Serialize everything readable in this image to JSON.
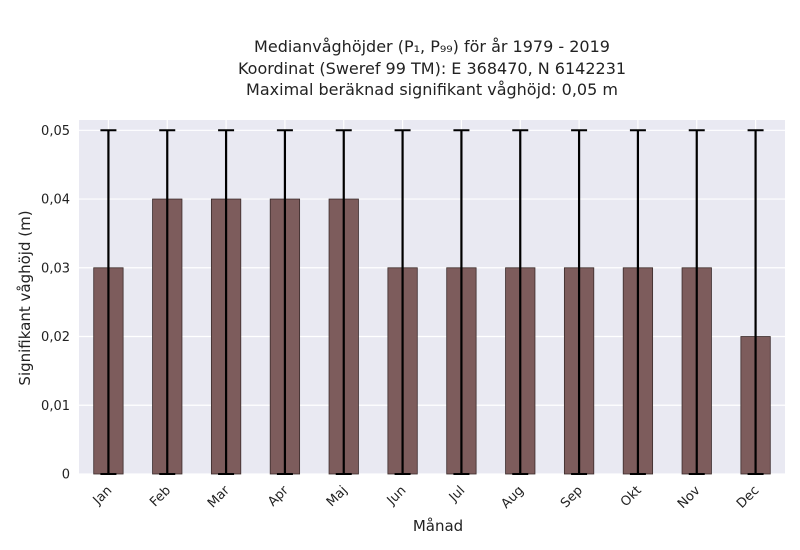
{
  "chart_data": {
    "type": "bar",
    "title_lines": [
      "Medianvåghöjder (P₁, P₉₉) för år 1979 - 2019",
      "Koordinat (Sweref 99 TM): E 368470, N 6142231",
      "Maximal beräknad signifikant våghöjd: 0,05 m"
    ],
    "xlabel": "Månad",
    "ylabel": "Signifikant våghöjd (m)",
    "categories": [
      "Jan",
      "Feb",
      "Mar",
      "Apr",
      "Maj",
      "Jun",
      "Jul",
      "Aug",
      "Sep",
      "Okt",
      "Nov",
      "Dec"
    ],
    "values": [
      0.03,
      0.04,
      0.04,
      0.04,
      0.04,
      0.03,
      0.03,
      0.03,
      0.03,
      0.03,
      0.03,
      0.02
    ],
    "error_low": [
      0,
      0,
      0,
      0,
      0,
      0,
      0,
      0,
      0,
      0,
      0,
      0
    ],
    "error_high": [
      0.05,
      0.05,
      0.05,
      0.05,
      0.05,
      0.05,
      0.05,
      0.05,
      0.05,
      0.05,
      0.05,
      0.05
    ],
    "ylim": [
      0,
      0.0515
    ],
    "yticks": [
      0,
      0.01,
      0.02,
      0.03,
      0.04,
      0.05
    ],
    "ytick_labels": [
      "0",
      "0,01",
      "0,02",
      "0,03",
      "0,04",
      "0,05"
    ],
    "grid": true,
    "colors": {
      "bar": "#7d5c5c",
      "bar_edge": "#3a2a2a",
      "error_bar": "#000000",
      "plot_bg": "#e9e9f2",
      "grid": "#ffffff"
    }
  }
}
